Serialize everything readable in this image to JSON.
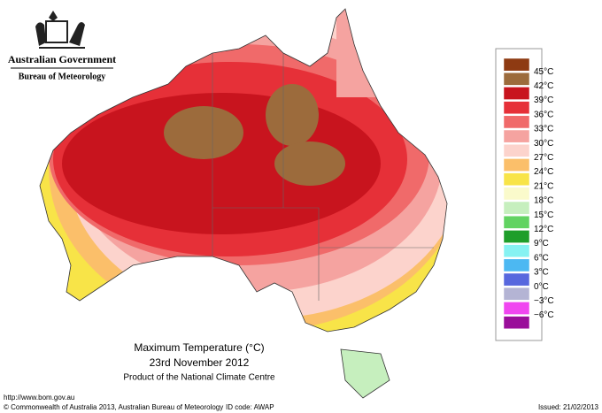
{
  "header": {
    "government": "Australian Government",
    "bureau": "Bureau of Meteorology"
  },
  "legend": {
    "colors": [
      "#8e3a12",
      "#9c6b3c",
      "#c8141e",
      "#e63038",
      "#f06a6a",
      "#f5a3a0",
      "#fcd3cc",
      "#fbbf6a",
      "#f8e448",
      "#fafacb",
      "#c6efbe",
      "#62d362",
      "#1e9e2a",
      "#86f2f2",
      "#4cb8f2",
      "#5868de",
      "#b4b4d4",
      "#f046f0",
      "#9a0e9a"
    ],
    "labels": [
      "45°C",
      "42°C",
      "39°C",
      "36°C",
      "33°C",
      "30°C",
      "27°C",
      "24°C",
      "21°C",
      "18°C",
      "15°C",
      "12°C",
      "9°C",
      "6°C",
      "3°C",
      "0°C",
      "−3°C",
      "−6°C"
    ]
  },
  "title": {
    "line1": "Maximum Temperature (°C)",
    "line2": "23rd November 2012",
    "line3": "Product of the National Climate Centre"
  },
  "footer": {
    "url": "http://www.bom.gov.au",
    "copyright": "© Commonwealth of Australia 2013, Australian Bureau of Meteorology",
    "id_code": "ID code: AWAP",
    "issued": "Issued: 21/02/2013"
  }
}
